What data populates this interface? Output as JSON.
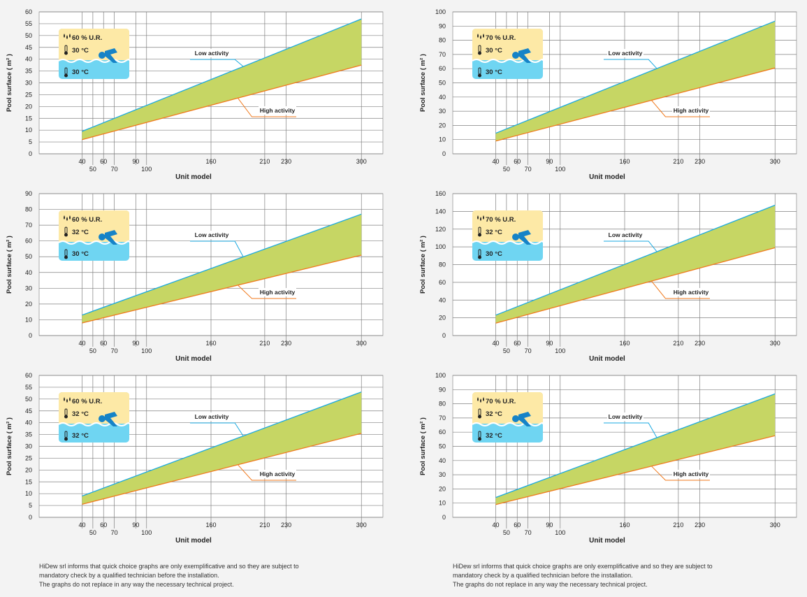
{
  "colors": {
    "low_line": "#1aa9e0",
    "high_line": "#f07a1e",
    "band_fill": "#c6d664",
    "grid": "#808080",
    "plot_bg": "#ffffff",
    "badge_air": "#fde9a6",
    "badge_water": "#6fd5f2"
  },
  "icons": {
    "humidity": "humidity-drops-icon",
    "thermometer": "thermometer-icon",
    "swimmer": "swimmer-icon"
  },
  "chart_data": [
    {
      "type": "area",
      "xlabel": "Unit model",
      "ylabel": "Pool surface ( m² )",
      "x_ticks": [
        40,
        50,
        60,
        70,
        90,
        100,
        160,
        210,
        230,
        300
      ],
      "xlim": [
        0,
        320
      ],
      "ylim": [
        0,
        60
      ],
      "y_ticks": [
        0,
        5,
        10,
        15,
        20,
        25,
        30,
        35,
        40,
        45,
        50,
        55,
        60
      ],
      "grid": true,
      "series": [
        {
          "name": "Low activity",
          "x": [
            40,
            300
          ],
          "y": [
            9.5,
            57
          ]
        },
        {
          "name": "High activity",
          "x": [
            40,
            300
          ],
          "y": [
            6,
            37.5
          ]
        }
      ],
      "badge": {
        "humidity": "60 % U.R.",
        "air_temp": "30 °C",
        "water_temp": "30 °C"
      }
    },
    {
      "type": "area",
      "xlabel": "Unit model",
      "ylabel": "Pool surface ( m² )",
      "x_ticks": [
        40,
        50,
        60,
        70,
        90,
        100,
        160,
        210,
        230,
        300
      ],
      "xlim": [
        0,
        320
      ],
      "ylim": [
        0,
        100
      ],
      "y_ticks": [
        0,
        10,
        20,
        30,
        40,
        50,
        60,
        70,
        80,
        90,
        100
      ],
      "grid": true,
      "series": [
        {
          "name": "Low activity",
          "x": [
            40,
            300
          ],
          "y": [
            14.5,
            93.5
          ]
        },
        {
          "name": "High activity",
          "x": [
            40,
            300
          ],
          "y": [
            9,
            60.5
          ]
        }
      ],
      "badge": {
        "humidity": "70 % U.R.",
        "air_temp": "30 °C",
        "water_temp": "30 °C"
      }
    },
    {
      "type": "area",
      "xlabel": "Unit model",
      "ylabel": "Pool surface ( m² )",
      "x_ticks": [
        40,
        50,
        60,
        70,
        90,
        100,
        160,
        210,
        230,
        300
      ],
      "xlim": [
        0,
        320
      ],
      "ylim": [
        0,
        90
      ],
      "y_ticks": [
        0,
        10,
        20,
        30,
        40,
        50,
        60,
        70,
        80,
        90
      ],
      "grid": true,
      "series": [
        {
          "name": "Low activity",
          "x": [
            40,
            300
          ],
          "y": [
            13,
            77
          ]
        },
        {
          "name": "High activity",
          "x": [
            40,
            300
          ],
          "y": [
            8,
            51
          ]
        }
      ],
      "badge": {
        "humidity": "60 % U.R.",
        "air_temp": "32 °C",
        "water_temp": "30 °C"
      }
    },
    {
      "type": "area",
      "xlabel": "Unit model",
      "ylabel": "Pool surface ( m² )",
      "x_ticks": [
        40,
        50,
        60,
        70,
        90,
        100,
        160,
        210,
        230,
        300
      ],
      "xlim": [
        0,
        320
      ],
      "ylim": [
        0,
        160
      ],
      "y_ticks": [
        0,
        20,
        40,
        60,
        80,
        100,
        120,
        140,
        160
      ],
      "grid": true,
      "series": [
        {
          "name": "Low activity",
          "x": [
            40,
            300
          ],
          "y": [
            23,
            147
          ]
        },
        {
          "name": "High activity",
          "x": [
            40,
            300
          ],
          "y": [
            14,
            99
          ]
        }
      ],
      "badge": {
        "humidity": "70 % U.R.",
        "air_temp": "32 °C",
        "water_temp": "30 °C"
      }
    },
    {
      "type": "area",
      "xlabel": "Unit model",
      "ylabel": "Pool surface ( m² )",
      "x_ticks": [
        40,
        50,
        60,
        70,
        90,
        100,
        160,
        210,
        230,
        300
      ],
      "xlim": [
        0,
        320
      ],
      "ylim": [
        0,
        60
      ],
      "y_ticks": [
        0,
        5,
        10,
        15,
        20,
        25,
        30,
        35,
        40,
        45,
        50,
        55,
        60
      ],
      "grid": true,
      "series": [
        {
          "name": "Low activity",
          "x": [
            40,
            300
          ],
          "y": [
            9,
            53
          ]
        },
        {
          "name": "High activity",
          "x": [
            40,
            300
          ],
          "y": [
            5.5,
            35.5
          ]
        }
      ],
      "badge": {
        "humidity": "60 % U.R.",
        "air_temp": "32 °C",
        "water_temp": "32 °C"
      }
    },
    {
      "type": "area",
      "xlabel": "Unit model",
      "ylabel": "Pool surface ( m² )",
      "x_ticks": [
        40,
        50,
        60,
        70,
        90,
        100,
        160,
        210,
        230,
        300
      ],
      "xlim": [
        0,
        320
      ],
      "ylim": [
        0,
        100
      ],
      "y_ticks": [
        0,
        10,
        20,
        30,
        40,
        50,
        60,
        70,
        80,
        90,
        100
      ],
      "grid": true,
      "series": [
        {
          "name": "Low activity",
          "x": [
            40,
            300
          ],
          "y": [
            14,
            87
          ]
        },
        {
          "name": "High activity",
          "x": [
            40,
            300
          ],
          "y": [
            9,
            57.5
          ]
        }
      ],
      "badge": {
        "humidity": "70 % U.R.",
        "air_temp": "32 °C",
        "water_temp": "32 °C"
      }
    }
  ],
  "disclaimers": [
    {
      "lines": [
        "HiDew srl informs that quick choice graphs are only exemplificative and so they are subject to",
        "mandatory check by a qualified technician before the installation.",
        "The graphs do not replace in any way the necessary technical project."
      ]
    },
    {
      "lines": [
        "HiDew srl informs that quick choice graphs are only exemplificative and so they are subject to",
        "mandatory check by a qualified technician before the installation.",
        "The graphs do not replace in any way the necessary technical project."
      ]
    }
  ]
}
